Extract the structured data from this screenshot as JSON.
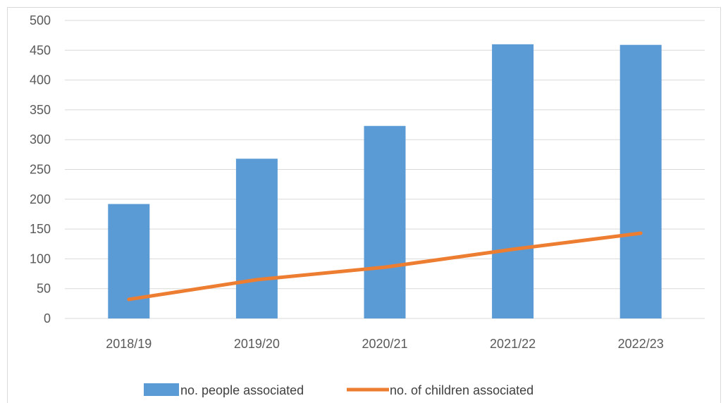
{
  "chart_data": {
    "type": "bar",
    "categories": [
      "2018/19",
      "2019/20",
      "2020/21",
      "2021/22",
      "2022/23"
    ],
    "series": [
      {
        "name": "no. people associated",
        "type": "bar",
        "color": "#5B9BD5",
        "values": [
          192,
          268,
          323,
          460,
          459
        ]
      },
      {
        "name": "no. of children associated",
        "type": "line",
        "color": "#ED7D31",
        "values": [
          32,
          65,
          86,
          116,
          143
        ]
      }
    ],
    "y_ticks": [
      "0",
      "50",
      "100",
      "150",
      "200",
      "250",
      "300",
      "350",
      "400",
      "450",
      "500"
    ],
    "ylim": [
      0,
      500
    ],
    "grid": true,
    "legend_position": "bottom"
  }
}
